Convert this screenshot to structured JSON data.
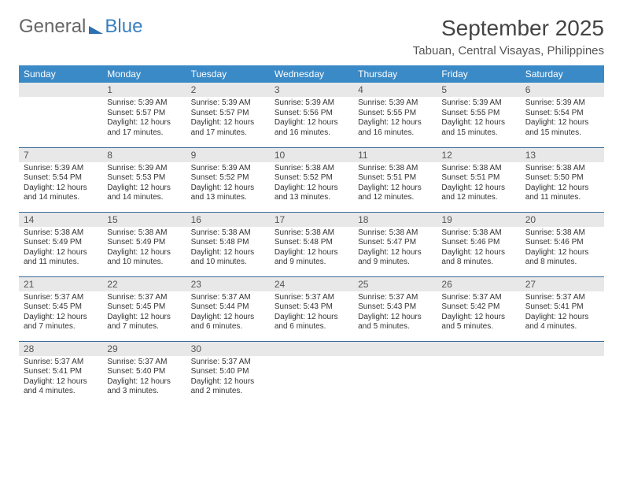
{
  "logo": {
    "part1": "General",
    "part2": "Blue"
  },
  "title": "September 2025",
  "location": "Tabuan, Central Visayas, Philippines",
  "colors": {
    "header_bg": "#3a8ac7",
    "header_fg": "#ffffff",
    "daynum_bg": "#e8e8e8",
    "row_border": "#3a6a9a",
    "logo_blue": "#2d6faf"
  },
  "weekdays": [
    "Sunday",
    "Monday",
    "Tuesday",
    "Wednesday",
    "Thursday",
    "Friday",
    "Saturday"
  ],
  "weeks": [
    [
      null,
      {
        "n": "1",
        "sr": "Sunrise: 5:39 AM",
        "ss": "Sunset: 5:57 PM",
        "dl": "Daylight: 12 hours and 17 minutes."
      },
      {
        "n": "2",
        "sr": "Sunrise: 5:39 AM",
        "ss": "Sunset: 5:57 PM",
        "dl": "Daylight: 12 hours and 17 minutes."
      },
      {
        "n": "3",
        "sr": "Sunrise: 5:39 AM",
        "ss": "Sunset: 5:56 PM",
        "dl": "Daylight: 12 hours and 16 minutes."
      },
      {
        "n": "4",
        "sr": "Sunrise: 5:39 AM",
        "ss": "Sunset: 5:55 PM",
        "dl": "Daylight: 12 hours and 16 minutes."
      },
      {
        "n": "5",
        "sr": "Sunrise: 5:39 AM",
        "ss": "Sunset: 5:55 PM",
        "dl": "Daylight: 12 hours and 15 minutes."
      },
      {
        "n": "6",
        "sr": "Sunrise: 5:39 AM",
        "ss": "Sunset: 5:54 PM",
        "dl": "Daylight: 12 hours and 15 minutes."
      }
    ],
    [
      {
        "n": "7",
        "sr": "Sunrise: 5:39 AM",
        "ss": "Sunset: 5:54 PM",
        "dl": "Daylight: 12 hours and 14 minutes."
      },
      {
        "n": "8",
        "sr": "Sunrise: 5:39 AM",
        "ss": "Sunset: 5:53 PM",
        "dl": "Daylight: 12 hours and 14 minutes."
      },
      {
        "n": "9",
        "sr": "Sunrise: 5:39 AM",
        "ss": "Sunset: 5:52 PM",
        "dl": "Daylight: 12 hours and 13 minutes."
      },
      {
        "n": "10",
        "sr": "Sunrise: 5:38 AM",
        "ss": "Sunset: 5:52 PM",
        "dl": "Daylight: 12 hours and 13 minutes."
      },
      {
        "n": "11",
        "sr": "Sunrise: 5:38 AM",
        "ss": "Sunset: 5:51 PM",
        "dl": "Daylight: 12 hours and 12 minutes."
      },
      {
        "n": "12",
        "sr": "Sunrise: 5:38 AM",
        "ss": "Sunset: 5:51 PM",
        "dl": "Daylight: 12 hours and 12 minutes."
      },
      {
        "n": "13",
        "sr": "Sunrise: 5:38 AM",
        "ss": "Sunset: 5:50 PM",
        "dl": "Daylight: 12 hours and 11 minutes."
      }
    ],
    [
      {
        "n": "14",
        "sr": "Sunrise: 5:38 AM",
        "ss": "Sunset: 5:49 PM",
        "dl": "Daylight: 12 hours and 11 minutes."
      },
      {
        "n": "15",
        "sr": "Sunrise: 5:38 AM",
        "ss": "Sunset: 5:49 PM",
        "dl": "Daylight: 12 hours and 10 minutes."
      },
      {
        "n": "16",
        "sr": "Sunrise: 5:38 AM",
        "ss": "Sunset: 5:48 PM",
        "dl": "Daylight: 12 hours and 10 minutes."
      },
      {
        "n": "17",
        "sr": "Sunrise: 5:38 AM",
        "ss": "Sunset: 5:48 PM",
        "dl": "Daylight: 12 hours and 9 minutes."
      },
      {
        "n": "18",
        "sr": "Sunrise: 5:38 AM",
        "ss": "Sunset: 5:47 PM",
        "dl": "Daylight: 12 hours and 9 minutes."
      },
      {
        "n": "19",
        "sr": "Sunrise: 5:38 AM",
        "ss": "Sunset: 5:46 PM",
        "dl": "Daylight: 12 hours and 8 minutes."
      },
      {
        "n": "20",
        "sr": "Sunrise: 5:38 AM",
        "ss": "Sunset: 5:46 PM",
        "dl": "Daylight: 12 hours and 8 minutes."
      }
    ],
    [
      {
        "n": "21",
        "sr": "Sunrise: 5:37 AM",
        "ss": "Sunset: 5:45 PM",
        "dl": "Daylight: 12 hours and 7 minutes."
      },
      {
        "n": "22",
        "sr": "Sunrise: 5:37 AM",
        "ss": "Sunset: 5:45 PM",
        "dl": "Daylight: 12 hours and 7 minutes."
      },
      {
        "n": "23",
        "sr": "Sunrise: 5:37 AM",
        "ss": "Sunset: 5:44 PM",
        "dl": "Daylight: 12 hours and 6 minutes."
      },
      {
        "n": "24",
        "sr": "Sunrise: 5:37 AM",
        "ss": "Sunset: 5:43 PM",
        "dl": "Daylight: 12 hours and 6 minutes."
      },
      {
        "n": "25",
        "sr": "Sunrise: 5:37 AM",
        "ss": "Sunset: 5:43 PM",
        "dl": "Daylight: 12 hours and 5 minutes."
      },
      {
        "n": "26",
        "sr": "Sunrise: 5:37 AM",
        "ss": "Sunset: 5:42 PM",
        "dl": "Daylight: 12 hours and 5 minutes."
      },
      {
        "n": "27",
        "sr": "Sunrise: 5:37 AM",
        "ss": "Sunset: 5:41 PM",
        "dl": "Daylight: 12 hours and 4 minutes."
      }
    ],
    [
      {
        "n": "28",
        "sr": "Sunrise: 5:37 AM",
        "ss": "Sunset: 5:41 PM",
        "dl": "Daylight: 12 hours and 4 minutes."
      },
      {
        "n": "29",
        "sr": "Sunrise: 5:37 AM",
        "ss": "Sunset: 5:40 PM",
        "dl": "Daylight: 12 hours and 3 minutes."
      },
      {
        "n": "30",
        "sr": "Sunrise: 5:37 AM",
        "ss": "Sunset: 5:40 PM",
        "dl": "Daylight: 12 hours and 2 minutes."
      },
      null,
      null,
      null,
      null
    ]
  ]
}
